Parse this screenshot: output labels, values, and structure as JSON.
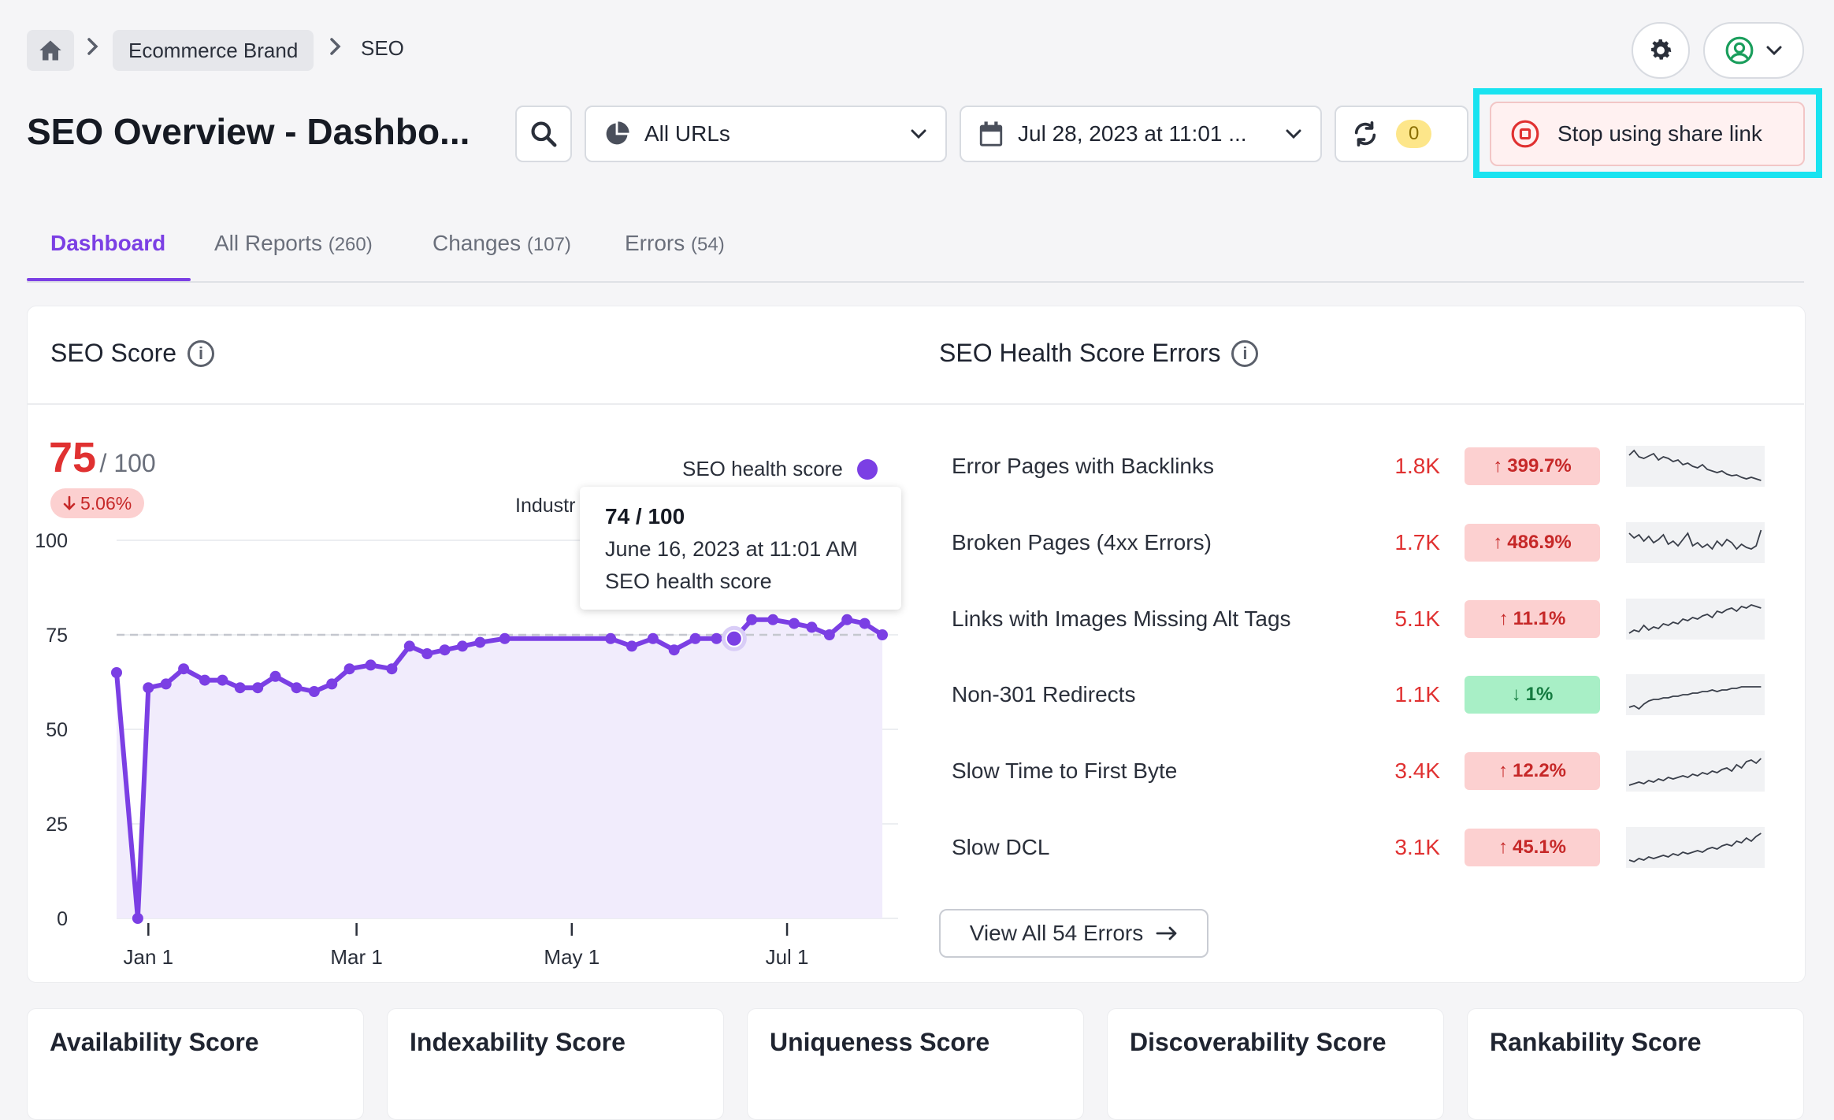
{
  "breadcrumb": {
    "items": [
      "Ecommerce Brand",
      "SEO"
    ]
  },
  "page": {
    "title": "SEO Overview - Dashbo..."
  },
  "toolbar": {
    "url_filter": "All URLs",
    "date": "Jul 28, 2023 at 11:01 ...",
    "sync_count": "0",
    "share_label": "Stop using share link"
  },
  "tabs": [
    {
      "label": "Dashboard",
      "count": ""
    },
    {
      "label": "All Reports",
      "count": "(260)"
    },
    {
      "label": "Changes",
      "count": "(107)"
    },
    {
      "label": "Errors",
      "count": "(54)"
    }
  ],
  "seo_score": {
    "title": "SEO Score",
    "score": "75",
    "out_of": "/ 100",
    "change": "5.06%",
    "legend_series": "SEO health score",
    "legend_industry": "Industr",
    "tooltip": {
      "value": "74 / 100",
      "date": "June 16, 2023 at 11:01 AM",
      "series": "SEO health score"
    }
  },
  "chart_data": {
    "type": "area",
    "series": [
      {
        "name": "SEO health score",
        "x": [
          "2022-12-23",
          "2022-12-29",
          "2023-01-01",
          "2023-01-06",
          "2023-01-11",
          "2023-01-17",
          "2023-01-22",
          "2023-01-27",
          "2023-02-01",
          "2023-02-06",
          "2023-02-12",
          "2023-02-17",
          "2023-02-22",
          "2023-02-27",
          "2023-03-05",
          "2023-03-11",
          "2023-03-16",
          "2023-03-21",
          "2023-03-26",
          "2023-03-31",
          "2023-04-05",
          "2023-04-12",
          "2023-05-12",
          "2023-05-18",
          "2023-05-24",
          "2023-05-30",
          "2023-06-05",
          "2023-06-11",
          "2023-06-16",
          "2023-06-21",
          "2023-06-27",
          "2023-07-03",
          "2023-07-08",
          "2023-07-13",
          "2023-07-18",
          "2023-07-23",
          "2023-07-28"
        ],
        "values": [
          65,
          0,
          61,
          62,
          66,
          63,
          63,
          61,
          61,
          64,
          61,
          60,
          62,
          66,
          67,
          66,
          72,
          70,
          71,
          72,
          73,
          74,
          74,
          72,
          74,
          71,
          74,
          74,
          74,
          79,
          79,
          78,
          77,
          75,
          79,
          78,
          75
        ]
      },
      {
        "name": "Industry",
        "values": [
          75
        ]
      }
    ],
    "x_ticks": [
      "Jan 1",
      "Mar 1",
      "May 1",
      "Jul 1"
    ],
    "y_ticks": [
      "100",
      "75",
      "50",
      "25",
      "0"
    ],
    "ylim": [
      0,
      100
    ],
    "grid": true,
    "legend": "top-right"
  },
  "health_errors": {
    "title": "SEO Health Score Errors",
    "rows": [
      {
        "label": "Error Pages with Backlinks",
        "value": "1.8K",
        "change": "399.7%",
        "dir": "up"
      },
      {
        "label": "Broken Pages (4xx Errors)",
        "value": "1.7K",
        "change": "486.9%",
        "dir": "up"
      },
      {
        "label": "Links with Images Missing Alt Tags",
        "value": "5.1K",
        "change": "11.1%",
        "dir": "up"
      },
      {
        "label": "Non-301 Redirects",
        "value": "1.1K",
        "change": "1%",
        "dir": "down"
      },
      {
        "label": "Slow Time to First Byte",
        "value": "3.4K",
        "change": "12.2%",
        "dir": "up"
      },
      {
        "label": "Slow DCL",
        "value": "3.1K",
        "change": "45.1%",
        "dir": "up"
      }
    ],
    "view_all": "View All 54 Errors"
  },
  "score_cards": [
    "Availability Score",
    "Indexability Score",
    "Uniqueness Score",
    "Discoverability Score",
    "Rankability Score"
  ],
  "colors": {
    "accent": "#7b3fe4",
    "negative": "#e03131",
    "positive": "#137a3f",
    "highlight": "#19e3f0"
  }
}
